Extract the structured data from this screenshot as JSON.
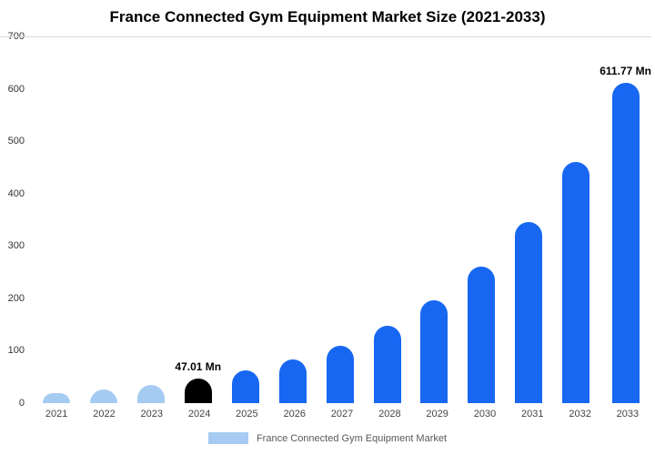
{
  "title": "France Connected Gym Equipment Market Size (2021-2033)",
  "legend": "France Connected Gym Equipment Market",
  "colors": {
    "bar_primary": "#1767f2",
    "bar_light": "#a6cbf2",
    "bar_highlight": "#000000",
    "gridline": "#d9d9d9"
  },
  "chart_data": {
    "type": "bar",
    "title": "France Connected Gym Equipment Market Size (2021-2033)",
    "xlabel": "",
    "ylabel": "",
    "unit": "Mn",
    "categories": [
      "2021",
      "2022",
      "2023",
      "2024",
      "2025",
      "2026",
      "2027",
      "2028",
      "2029",
      "2030",
      "2031",
      "2032",
      "2033"
    ],
    "values": [
      20,
      26,
      35,
      47.01,
      62,
      83,
      110,
      147,
      196,
      260,
      346,
      460,
      611.77
    ],
    "bar_colors": [
      "#a6cbf2",
      "#a6cbf2",
      "#a6cbf2",
      "#000000",
      "#1767f2",
      "#1767f2",
      "#1767f2",
      "#1767f2",
      "#1767f2",
      "#1767f2",
      "#1767f2",
      "#1767f2",
      "#1767f2"
    ],
    "annotations": [
      {
        "index": 3,
        "text": "47.01 Mn"
      },
      {
        "index": 12,
        "text": "611.77 Mn"
      }
    ],
    "ylim": [
      0,
      700
    ],
    "yticks": [
      0,
      100,
      200,
      300,
      400,
      500,
      600,
      700
    ],
    "grid": "top-line-only",
    "legend": "France Connected Gym Equipment Market",
    "legend_position": "bottom-center"
  }
}
